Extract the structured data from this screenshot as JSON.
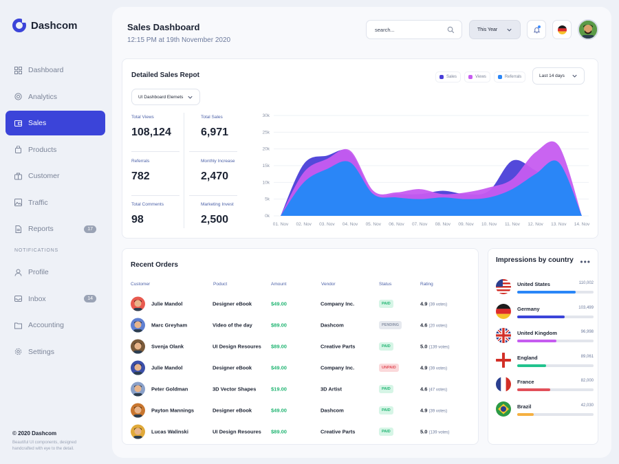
{
  "app": {
    "name": "Dashcom"
  },
  "sidebar": {
    "items": [
      {
        "label": "Dashboard",
        "icon": "grid-icon",
        "active": false
      },
      {
        "label": "Analytics",
        "icon": "target-icon",
        "active": false
      },
      {
        "label": "Sales",
        "icon": "card-icon",
        "active": true
      },
      {
        "label": "Products",
        "icon": "bag-icon",
        "active": false
      },
      {
        "label": "Customer",
        "icon": "briefcase-icon",
        "active": false
      },
      {
        "label": "Traffic",
        "icon": "image-icon",
        "active": false
      },
      {
        "label": "Reports",
        "icon": "document-icon",
        "active": false,
        "badge": "17"
      }
    ],
    "section_label": "NOTIFICATIONS",
    "notification_items": [
      {
        "label": "Profile",
        "icon": "user-icon"
      },
      {
        "label": "Inbox",
        "icon": "inbox-icon",
        "badge": "14"
      },
      {
        "label": "Accounting",
        "icon": "folder-icon"
      },
      {
        "label": "Settings",
        "icon": "gear-icon"
      }
    ],
    "copyright": "© 2020 Dashcom",
    "tagline": "Beautiful UI components, designed handcrafted with eye to the detail."
  },
  "header": {
    "title": "Sales Dashboard",
    "subtitle": "12:15 PM at 19th November 2020",
    "search_placeholder": "search...",
    "range_label": "This Year",
    "language_flag": "flag-germany-icon"
  },
  "sales_card": {
    "title": "Detailed Sales Repot",
    "dataset_select": "UI Dashboard Elemets",
    "period_select": "Last 14 days",
    "stats": [
      {
        "label": "Total Views",
        "value": "108,124"
      },
      {
        "label": "Total Sales",
        "value": "6,971"
      },
      {
        "label": "Referrals",
        "value": "782"
      },
      {
        "label": "Monthly Increase",
        "value": "2,470"
      },
      {
        "label": "Total Comments",
        "value": "98"
      },
      {
        "label": "Marketing Invest",
        "value": "2,500"
      }
    ]
  },
  "chart_data": {
    "type": "area",
    "x": [
      "01. Nov",
      "02. Nov",
      "03. Nov",
      "04. Nov",
      "05. Nov",
      "06. Nov",
      "07. Nov",
      "08. Nov",
      "09. Nov",
      "10. Nov",
      "11. Nov",
      "12. Nov",
      "13. Nov",
      "14. Nov"
    ],
    "y_ticks": [
      "0k",
      "5k",
      "10k",
      "15k",
      "20k",
      "25k",
      "30k"
    ],
    "ylim": [
      0,
      30000
    ],
    "grid": true,
    "legend_position": "top-right",
    "series": [
      {
        "name": "Sales",
        "color": "#4a3fd8",
        "values": [
          0,
          15500,
          18000,
          19000,
          6500,
          6500,
          6500,
          7500,
          6500,
          7500,
          16500,
          13500,
          8500,
          0
        ]
      },
      {
        "name": "Views",
        "color": "#c65cf0",
        "values": [
          0,
          13000,
          17000,
          19500,
          7500,
          7000,
          8000,
          6500,
          7000,
          8500,
          11000,
          19000,
          21000,
          0
        ]
      },
      {
        "name": "Referrals",
        "color": "#2a86f7",
        "values": [
          0,
          10000,
          14000,
          16000,
          6500,
          5500,
          5000,
          5500,
          5000,
          5500,
          8000,
          12500,
          16000,
          0
        ]
      }
    ]
  },
  "orders": {
    "title": "Recent Orders",
    "columns": [
      "Customer",
      "Poduct",
      "Amount",
      "Vendor",
      "Status",
      "Rating"
    ],
    "rows": [
      {
        "customer": "Julie Mandol",
        "product": "Designer eBook",
        "amount": "$49.00",
        "vendor": "Company Inc.",
        "status": "PAID",
        "rating": "4.9",
        "votes": "(39 votes)",
        "avatar_color": "#e85a4f"
      },
      {
        "customer": "Marc Greyham",
        "product": "Video of the day",
        "amount": "$89.00",
        "vendor": "Dashcom",
        "status": "PENDING",
        "rating": "4.6",
        "votes": "(20 votes)",
        "avatar_color": "#5f7fd1"
      },
      {
        "customer": "Svenja Olank",
        "product": "UI Design Resoures",
        "amount": "$89.00",
        "vendor": "Creative Parts",
        "status": "PAID",
        "rating": "5.0",
        "votes": "(139 votes)",
        "avatar_color": "#7a5a3a"
      },
      {
        "customer": "Julie Mandol",
        "product": "Designer eBook",
        "amount": "$49.00",
        "vendor": "Company Inc.",
        "status": "UNPAID",
        "rating": "4.9",
        "votes": "(39 votes)",
        "avatar_color": "#3c4fa8"
      },
      {
        "customer": "Peter Goldman",
        "product": "3D Vector Shapes",
        "amount": "$19.00",
        "vendor": "3D Artist",
        "status": "PAID",
        "rating": "4.6",
        "votes": "(47 votes)",
        "avatar_color": "#8aa0c8"
      },
      {
        "customer": "Payton Mannings",
        "product": "Designer eBook",
        "amount": "$49.00",
        "vendor": "Dashcom",
        "status": "PAID",
        "rating": "4.9",
        "votes": "(39 votes)",
        "avatar_color": "#c8762f"
      },
      {
        "customer": "Lucas Walinski",
        "product": "UI Design Resoures",
        "amount": "$89.00",
        "vendor": "Creative Parts",
        "status": "PAID",
        "rating": "5.0",
        "votes": "(139 votes)",
        "avatar_color": "#e0a93a"
      }
    ],
    "status_colors": {
      "PAID": {
        "bg": "#d6f5e6",
        "fg": "#22b573"
      },
      "PENDING": {
        "bg": "#e6e9ef",
        "fg": "#8a93a6"
      },
      "UNPAID": {
        "bg": "#fbd9db",
        "fg": "#e2505a"
      }
    }
  },
  "impressions": {
    "title": "Impressions by country",
    "more_icon": "more-dots-icon",
    "rows": [
      {
        "country": "United States",
        "value": "110,002",
        "fraction": 0.77,
        "color": "#2a86f7",
        "flag": "flag-usa-icon"
      },
      {
        "country": "Germany",
        "value": "103,499",
        "fraction": 0.62,
        "color": "#3b44d9",
        "flag": "flag-germany-icon"
      },
      {
        "country": "United Kingdom",
        "value": "96,998",
        "fraction": 0.51,
        "color": "#c65cf0",
        "flag": "flag-uk-icon"
      },
      {
        "country": "England",
        "value": "89,061",
        "fraction": 0.38,
        "color": "#22c38e",
        "flag": "flag-england-icon"
      },
      {
        "country": "France",
        "value": "82,000",
        "fraction": 0.43,
        "color": "#e2505a",
        "flag": "flag-france-icon"
      },
      {
        "country": "Brazil",
        "value": "42,030",
        "fraction": 0.22,
        "color": "#f5b041",
        "flag": "flag-brazil-icon"
      }
    ]
  }
}
